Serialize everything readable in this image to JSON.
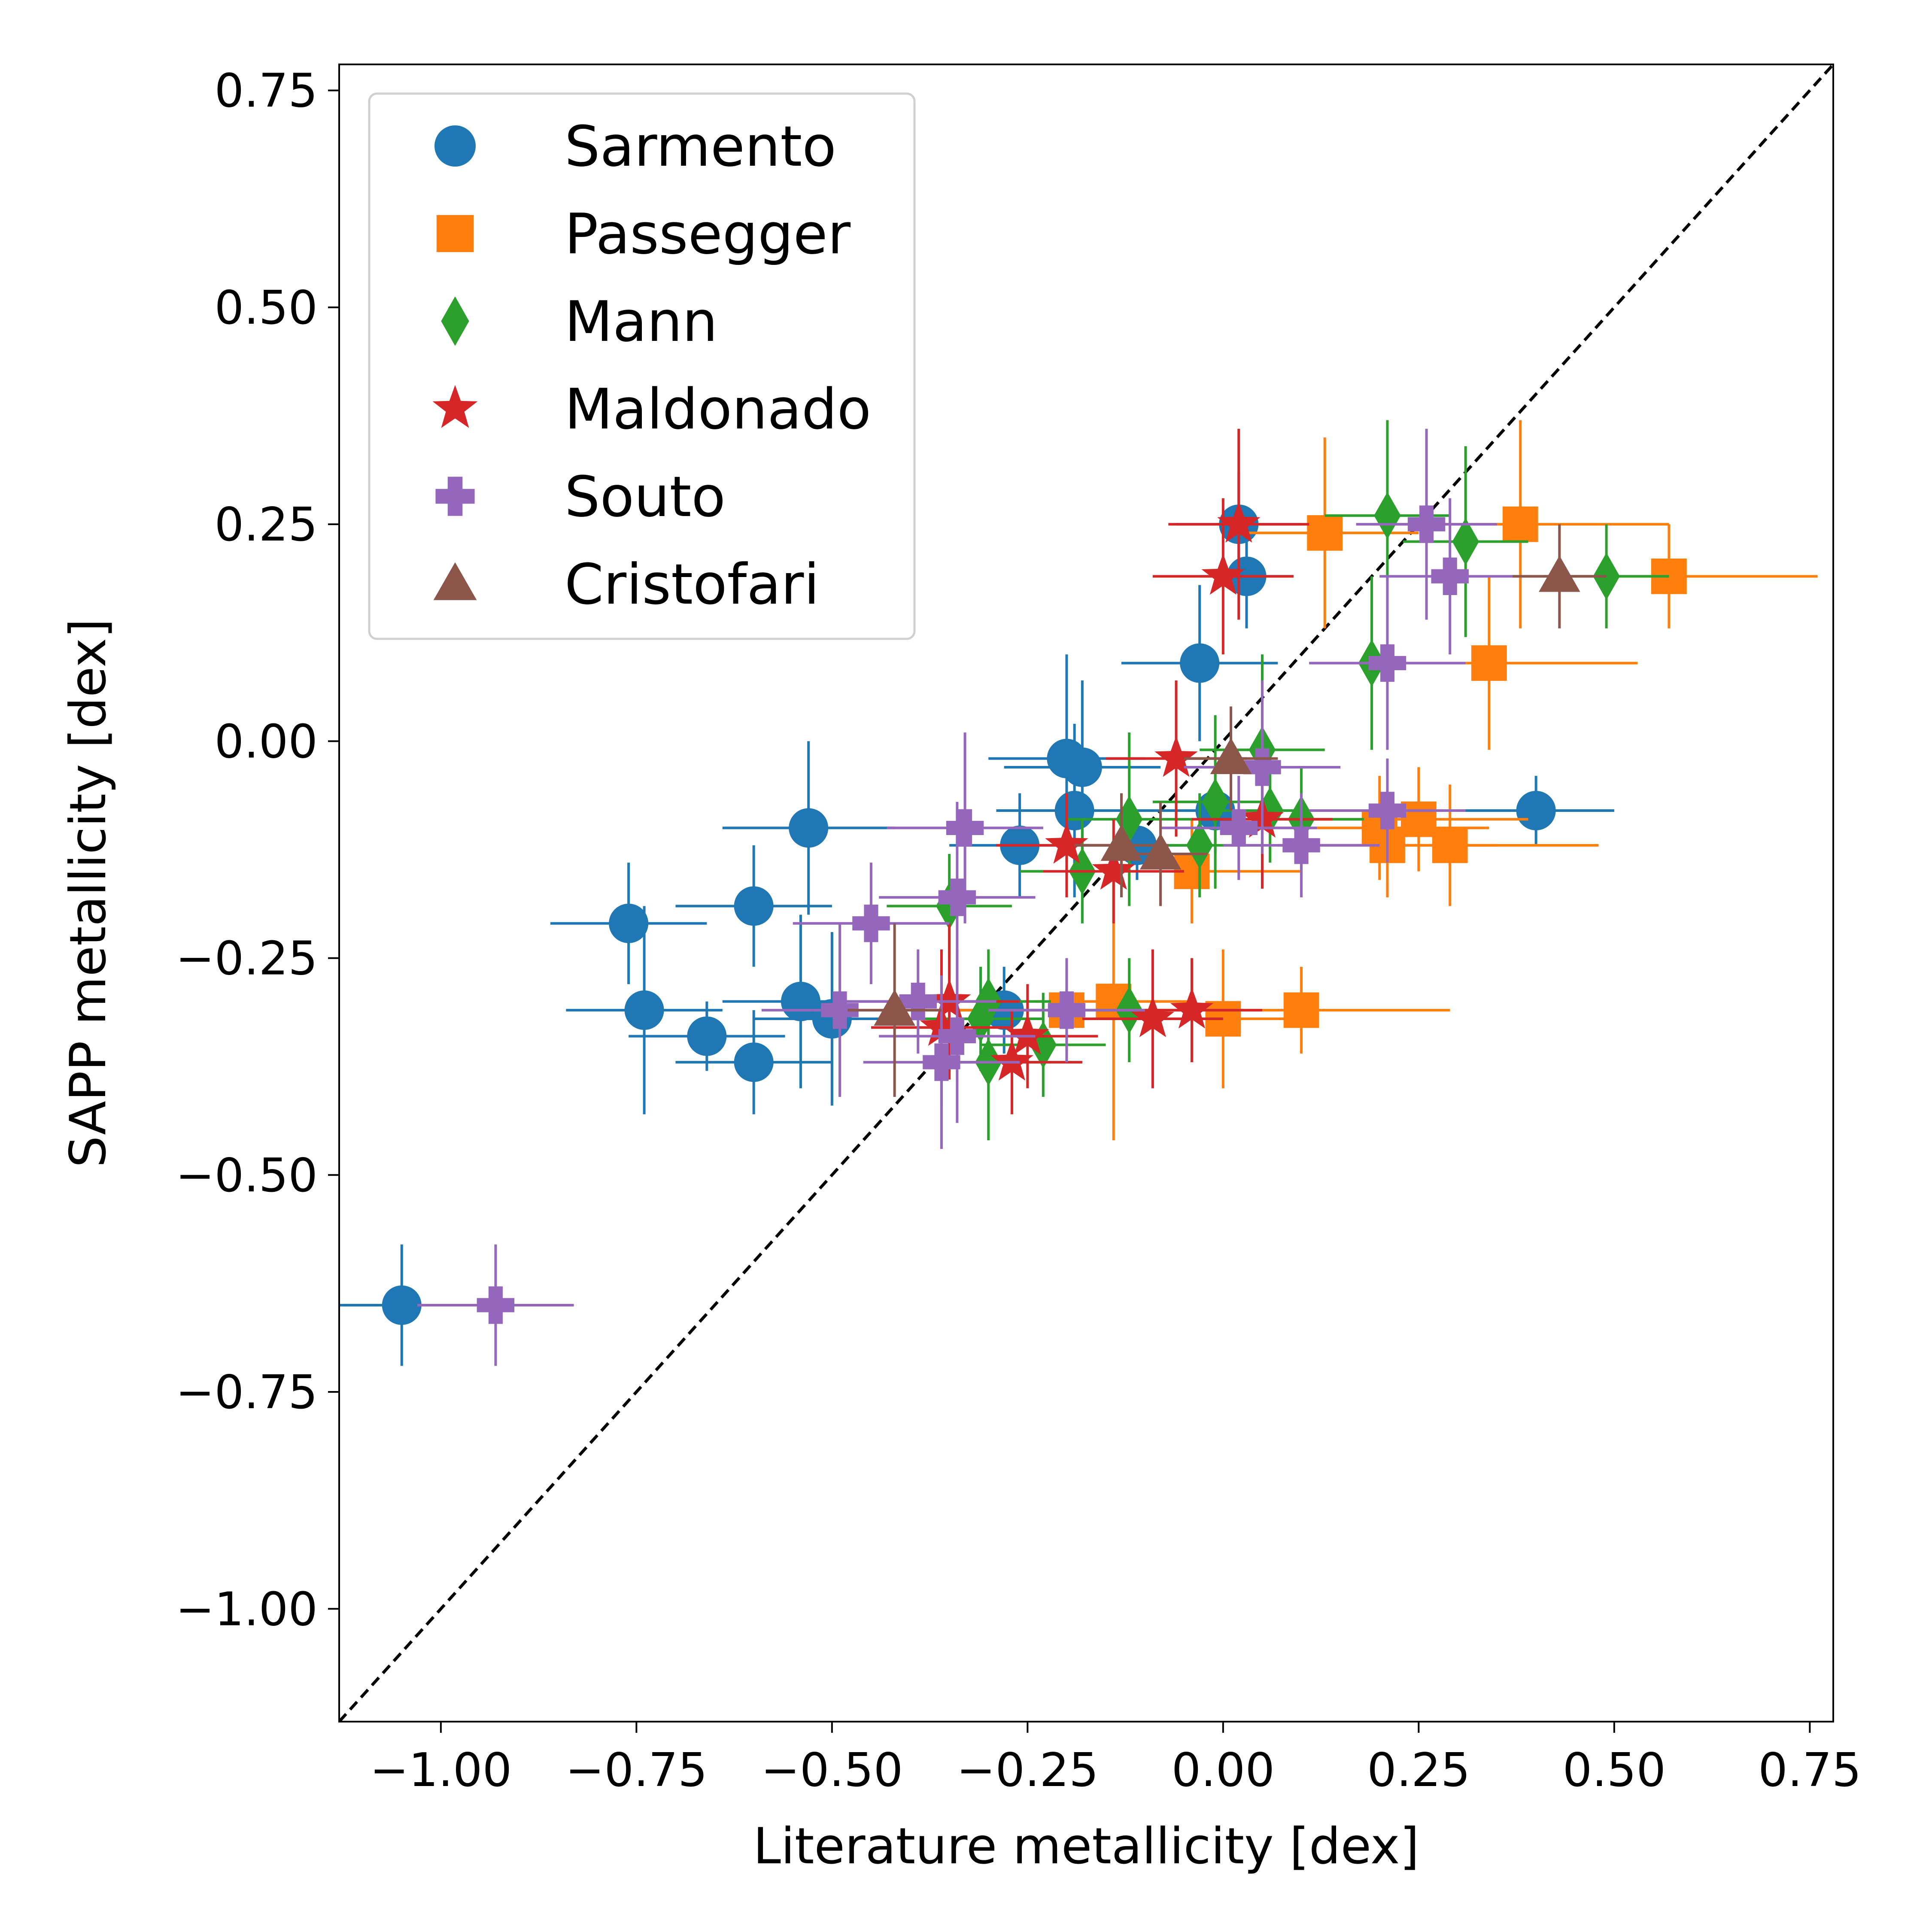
{
  "chart_data": {
    "type": "scatter",
    "xlabel": "Literature metallicity [dex]",
    "ylabel": "SAPP metallicity [dex]",
    "xlim": [
      -1.13,
      0.78
    ],
    "ylim": [
      -1.13,
      0.78
    ],
    "x_ticks": [
      -1.0,
      -0.75,
      -0.5,
      -0.25,
      0.0,
      0.25,
      0.5,
      0.75
    ],
    "x_tick_labels": [
      "−1.00",
      "−0.75",
      "−0.50",
      "−0.25",
      "0.00",
      "0.25",
      "0.50",
      "0.75"
    ],
    "y_ticks": [
      0.75,
      0.5,
      0.25,
      0.0,
      -0.25,
      -0.5,
      -0.75,
      -1.0
    ],
    "y_tick_labels": [
      "0.75",
      "0.50",
      "0.25",
      "0.00",
      "−0.25",
      "−0.50",
      "−0.75",
      "−1.00"
    ],
    "grid": false,
    "reference_line": {
      "type": "one_to_one",
      "style": "dashed",
      "color": "#000000"
    },
    "legend_position": "upper left",
    "series": [
      {
        "name": "Sarmento",
        "marker": "circle",
        "color": "#1f77b4",
        "points": [
          {
            "x": 0.02,
            "y": 0.25,
            "xerr": 0.08,
            "yerr": 0.06
          },
          {
            "x": 0.03,
            "y": 0.19,
            "xerr": 0.06,
            "yerr": 0.06
          },
          {
            "x": -0.03,
            "y": 0.09,
            "xerr": 0.1,
            "yerr": 0.09
          },
          {
            "x": -0.2,
            "y": -0.02,
            "xerr": 0.1,
            "yerr": 0.12
          },
          {
            "x": -0.18,
            "y": -0.03,
            "xerr": 0.1,
            "yerr": 0.1
          },
          {
            "x": -0.19,
            "y": -0.08,
            "xerr": 0.1,
            "yerr": 0.1
          },
          {
            "x": -0.53,
            "y": -0.1,
            "xerr": 0.11,
            "yerr": 0.1
          },
          {
            "x": -0.26,
            "y": -0.12,
            "xerr": 0.09,
            "yerr": 0.06
          },
          {
            "x": -0.6,
            "y": -0.19,
            "xerr": 0.1,
            "yerr": 0.07
          },
          {
            "x": -0.76,
            "y": -0.21,
            "xerr": 0.1,
            "yerr": 0.07
          },
          {
            "x": -0.54,
            "y": -0.3,
            "xerr": 0.1,
            "yerr": 0.1
          },
          {
            "x": -0.74,
            "y": -0.31,
            "xerr": 0.1,
            "yerr": 0.12
          },
          {
            "x": -0.5,
            "y": -0.32,
            "xerr": 0.1,
            "yerr": 0.1
          },
          {
            "x": -0.66,
            "y": -0.34,
            "xerr": 0.1,
            "yerr": 0.04
          },
          {
            "x": -0.6,
            "y": -0.37,
            "xerr": 0.1,
            "yerr": 0.06
          },
          {
            "x": -0.28,
            "y": -0.31,
            "xerr": 0.1,
            "yerr": 0.05
          },
          {
            "x": 0.4,
            "y": -0.08,
            "xerr": 0.1,
            "yerr": 0.04
          },
          {
            "x": -0.01,
            "y": -0.08,
            "xerr": 0.1,
            "yerr": 0.05
          },
          {
            "x": -0.11,
            "y": -0.12,
            "xerr": 0.08,
            "yerr": 0.04
          },
          {
            "x": -1.05,
            "y": -0.65,
            "xerr": 0.1,
            "yerr": 0.07
          }
        ]
      },
      {
        "name": "Passegger",
        "marker": "square",
        "color": "#ff7f0e",
        "points": [
          {
            "x": 0.13,
            "y": 0.24,
            "xerr": 0.12,
            "yerr": 0.11
          },
          {
            "x": 0.38,
            "y": 0.25,
            "xerr": 0.19,
            "yerr": 0.12
          },
          {
            "x": 0.57,
            "y": 0.19,
            "xerr": 0.19,
            "yerr": 0.06
          },
          {
            "x": 0.34,
            "y": 0.09,
            "xerr": 0.19,
            "yerr": 0.1
          },
          {
            "x": 0.2,
            "y": -0.1,
            "xerr": 0.14,
            "yerr": 0.06
          },
          {
            "x": 0.25,
            "y": -0.09,
            "xerr": 0.14,
            "yerr": 0.06
          },
          {
            "x": 0.21,
            "y": -0.12,
            "xerr": 0.14,
            "yerr": 0.06
          },
          {
            "x": 0.29,
            "y": -0.12,
            "xerr": 0.19,
            "yerr": 0.07
          },
          {
            "x": -0.04,
            "y": -0.15,
            "xerr": 0.14,
            "yerr": 0.06
          },
          {
            "x": -0.2,
            "y": -0.31,
            "xerr": 0.14,
            "yerr": 0.05
          },
          {
            "x": -0.14,
            "y": -0.3,
            "xerr": 0.1,
            "yerr": 0.16
          },
          {
            "x": 0.0,
            "y": -0.32,
            "xerr": 0.1,
            "yerr": 0.08
          },
          {
            "x": 0.1,
            "y": -0.31,
            "xerr": 0.19,
            "yerr": 0.05
          }
        ]
      },
      {
        "name": "Mann",
        "marker": "diamond",
        "color": "#2ca02c",
        "points": [
          {
            "x": 0.21,
            "y": 0.26,
            "xerr": 0.08,
            "yerr": 0.11
          },
          {
            "x": 0.31,
            "y": 0.23,
            "xerr": 0.08,
            "yerr": 0.11
          },
          {
            "x": 0.49,
            "y": 0.19,
            "xerr": 0.08,
            "yerr": 0.06
          },
          {
            "x": 0.19,
            "y": 0.09,
            "xerr": 0.08,
            "yerr": 0.1
          },
          {
            "x": 0.05,
            "y": -0.01,
            "xerr": 0.08,
            "yerr": 0.11
          },
          {
            "x": -0.12,
            "y": -0.09,
            "xerr": 0.08,
            "yerr": 0.1
          },
          {
            "x": 0.06,
            "y": -0.08,
            "xerr": 0.08,
            "yerr": 0.06
          },
          {
            "x": 0.1,
            "y": -0.09,
            "xerr": 0.08,
            "yerr": 0.06
          },
          {
            "x": -0.01,
            "y": -0.07,
            "xerr": 0.08,
            "yerr": 0.1
          },
          {
            "x": -0.03,
            "y": -0.12,
            "xerr": 0.08,
            "yerr": 0.06
          },
          {
            "x": -0.18,
            "y": -0.15,
            "xerr": 0.08,
            "yerr": 0.06
          },
          {
            "x": -0.35,
            "y": -0.19,
            "xerr": 0.08,
            "yerr": 0.06
          },
          {
            "x": -0.3,
            "y": -0.3,
            "xerr": 0.08,
            "yerr": 0.06
          },
          {
            "x": -0.31,
            "y": -0.32,
            "xerr": 0.08,
            "yerr": 0.06
          },
          {
            "x": -0.3,
            "y": -0.37,
            "xerr": 0.08,
            "yerr": 0.09
          },
          {
            "x": -0.23,
            "y": -0.35,
            "xerr": 0.08,
            "yerr": 0.06
          },
          {
            "x": -0.12,
            "y": -0.31,
            "xerr": 0.08,
            "yerr": 0.06
          }
        ]
      },
      {
        "name": "Maldonado",
        "marker": "star",
        "color": "#d62728",
        "points": [
          {
            "x": 0.0,
            "y": 0.19,
            "xerr": 0.09,
            "yerr": 0.09
          },
          {
            "x": 0.02,
            "y": 0.25,
            "xerr": 0.09,
            "yerr": 0.11
          },
          {
            "x": -0.06,
            "y": -0.02,
            "xerr": 0.09,
            "yerr": 0.09
          },
          {
            "x": -0.2,
            "y": -0.12,
            "xerr": 0.09,
            "yerr": 0.06
          },
          {
            "x": -0.14,
            "y": -0.15,
            "xerr": 0.09,
            "yerr": 0.06
          },
          {
            "x": 0.05,
            "y": -0.09,
            "xerr": 0.09,
            "yerr": 0.08
          },
          {
            "x": -0.35,
            "y": -0.3,
            "xerr": 0.09,
            "yerr": 0.09
          },
          {
            "x": -0.36,
            "y": -0.33,
            "xerr": 0.09,
            "yerr": 0.09
          },
          {
            "x": -0.27,
            "y": -0.37,
            "xerr": 0.09,
            "yerr": 0.06
          },
          {
            "x": -0.25,
            "y": -0.34,
            "xerr": 0.09,
            "yerr": 0.06
          },
          {
            "x": -0.09,
            "y": -0.32,
            "xerr": 0.09,
            "yerr": 0.08
          },
          {
            "x": -0.04,
            "y": -0.31,
            "xerr": 0.09,
            "yerr": 0.06
          }
        ]
      },
      {
        "name": "Souto",
        "marker": "plus",
        "color": "#9467bd",
        "points": [
          {
            "x": 0.26,
            "y": 0.25,
            "xerr": 0.09,
            "yerr": 0.11
          },
          {
            "x": 0.29,
            "y": 0.19,
            "xerr": 0.09,
            "yerr": 0.09
          },
          {
            "x": 0.21,
            "y": 0.09,
            "xerr": 0.1,
            "yerr": 0.1
          },
          {
            "x": 0.05,
            "y": -0.03,
            "xerr": 0.1,
            "yerr": 0.1
          },
          {
            "x": 0.21,
            "y": -0.08,
            "xerr": 0.1,
            "yerr": 0.06
          },
          {
            "x": 0.1,
            "y": -0.12,
            "xerr": 0.1,
            "yerr": 0.06
          },
          {
            "x": 0.02,
            "y": -0.1,
            "xerr": 0.1,
            "yerr": 0.06
          },
          {
            "x": -0.33,
            "y": -0.1,
            "xerr": 0.1,
            "yerr": 0.11
          },
          {
            "x": -0.34,
            "y": -0.18,
            "xerr": 0.1,
            "yerr": 0.11
          },
          {
            "x": -0.45,
            "y": -0.21,
            "xerr": 0.1,
            "yerr": 0.07
          },
          {
            "x": -0.49,
            "y": -0.31,
            "xerr": 0.1,
            "yerr": 0.1
          },
          {
            "x": -0.39,
            "y": -0.3,
            "xerr": 0.1,
            "yerr": 0.06
          },
          {
            "x": -0.36,
            "y": -0.37,
            "xerr": 0.1,
            "yerr": 0.1
          },
          {
            "x": -0.34,
            "y": -0.34,
            "xerr": 0.1,
            "yerr": 0.1
          },
          {
            "x": -0.2,
            "y": -0.31,
            "xerr": 0.1,
            "yerr": 0.06
          },
          {
            "x": -0.93,
            "y": -0.65,
            "xerr": 0.1,
            "yerr": 0.07
          }
        ]
      },
      {
        "name": "Cristofari",
        "marker": "triangle",
        "color": "#8c564b",
        "points": [
          {
            "x": 0.43,
            "y": 0.19,
            "xerr": 0.06,
            "yerr": 0.06
          },
          {
            "x": 0.01,
            "y": -0.02,
            "xerr": 0.06,
            "yerr": 0.06
          },
          {
            "x": -0.13,
            "y": -0.12,
            "xerr": 0.06,
            "yerr": 0.06
          },
          {
            "x": -0.08,
            "y": -0.13,
            "xerr": 0.06,
            "yerr": 0.06
          },
          {
            "x": -0.42,
            "y": -0.31,
            "xerr": 0.06,
            "yerr": 0.1
          }
        ]
      }
    ]
  }
}
